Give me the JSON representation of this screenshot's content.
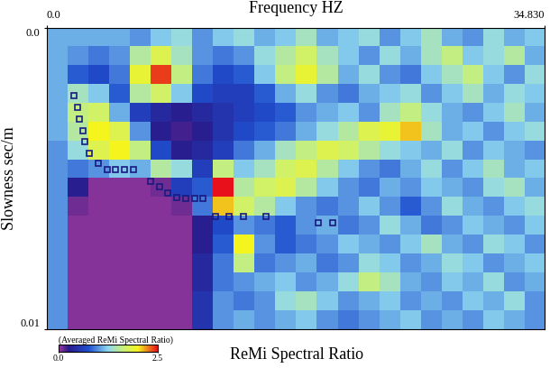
{
  "chart_data": {
    "type": "heatmap",
    "x_label": "Frequency HZ",
    "y_label": "Slowness sec/m",
    "caption": "ReMi Spectral Ratio",
    "xlim": [
      0,
      34.83
    ],
    "xticks": [
      {
        "value": 0,
        "label": "0.0"
      },
      {
        "value": 34.83,
        "label": "34.830"
      }
    ],
    "ylim": [
      0.01,
      0.0
    ],
    "yticks": [
      {
        "value": 0,
        "label": "0.0"
      },
      {
        "value": 0.01,
        "label": "0.01"
      }
    ],
    "cells": [
      [
        1.1,
        1.1,
        1.1,
        1.1,
        1.0,
        1.2,
        1.3,
        1.0,
        1.2,
        1.3,
        1.1,
        1.2,
        1.4,
        1.1,
        1.2,
        1.3,
        1.0,
        1.2,
        1.4,
        1.1,
        1.0,
        1.3,
        1.1,
        1.2
      ],
      [
        1.1,
        1.0,
        0.9,
        1.0,
        1.5,
        1.8,
        1.4,
        1.0,
        0.9,
        1.0,
        1.3,
        1.5,
        1.7,
        1.4,
        1.2,
        1.0,
        1.3,
        1.1,
        1.4,
        1.6,
        1.2,
        1.3,
        1.5,
        1.1
      ],
      [
        1.1,
        0.8,
        0.7,
        0.9,
        1.9,
        2.4,
        1.6,
        0.9,
        0.7,
        0.8,
        1.2,
        1.6,
        1.9,
        1.5,
        1.1,
        1.3,
        1.0,
        0.9,
        1.2,
        1.4,
        1.6,
        1.2,
        1.0,
        1.3
      ],
      [
        1.1,
        1.4,
        1.2,
        0.8,
        1.5,
        1.7,
        1.2,
        0.7,
        0.6,
        0.6,
        0.8,
        1.1,
        1.3,
        1.0,
        0.9,
        1.1,
        1.2,
        1.3,
        1.0,
        1.2,
        1.4,
        1.1,
        1.3,
        1.2
      ],
      [
        1.1,
        1.6,
        1.7,
        1.1,
        0.6,
        0.4,
        0.3,
        0.4,
        0.5,
        0.6,
        0.7,
        0.8,
        1.0,
        1.1,
        1.2,
        1.0,
        1.4,
        1.6,
        1.3,
        1.1,
        1.0,
        1.2,
        1.4,
        1.1
      ],
      [
        1.1,
        1.5,
        2.0,
        1.8,
        1.0,
        0.3,
        0.2,
        0.3,
        0.5,
        0.7,
        0.8,
        0.9,
        1.1,
        1.3,
        1.5,
        1.8,
        1.9,
        2.1,
        1.4,
        1.1,
        1.2,
        1.0,
        1.2,
        1.3
      ],
      [
        1.0,
        1.3,
        1.8,
        2.0,
        1.6,
        0.7,
        0.3,
        0.4,
        0.6,
        0.9,
        1.1,
        1.4,
        1.6,
        1.8,
        1.7,
        1.5,
        1.3,
        1.2,
        1.1,
        1.3,
        1.0,
        1.2,
        1.1,
        1.0
      ],
      [
        1.0,
        0.9,
        1.0,
        1.2,
        1.1,
        1.5,
        1.3,
        0.6,
        1.6,
        1.2,
        1.4,
        1.7,
        1.8,
        1.5,
        1.2,
        1.0,
        0.9,
        1.1,
        1.3,
        1.0,
        1.2,
        1.4,
        1.1,
        1.2
      ],
      [
        1.0,
        0.3,
        0.05,
        0.05,
        0.05,
        0.1,
        0.6,
        0.8,
        2.5,
        1.5,
        1.7,
        1.8,
        1.5,
        1.2,
        1.0,
        0.9,
        1.1,
        1.0,
        1.2,
        1.1,
        1.0,
        1.3,
        1.4,
        1.1
      ],
      [
        1.0,
        0.1,
        0.05,
        0.05,
        0.05,
        0.05,
        0.1,
        0.9,
        2.1,
        1.7,
        1.5,
        1.2,
        1.0,
        0.9,
        1.0,
        1.2,
        1.0,
        0.8,
        1.0,
        1.3,
        1.1,
        1.0,
        1.2,
        1.3
      ],
      [
        1.0,
        0.05,
        0.05,
        0.05,
        0.05,
        0.05,
        0.05,
        0.3,
        0.7,
        1.0,
        0.9,
        0.8,
        1.0,
        1.1,
        0.9,
        1.0,
        1.3,
        1.1,
        0.9,
        1.0,
        1.2,
        1.1,
        1.0,
        1.2
      ],
      [
        1.0,
        0.05,
        0.05,
        0.05,
        0.05,
        0.05,
        0.05,
        0.3,
        0.8,
        2.0,
        1.0,
        0.8,
        0.9,
        1.0,
        1.2,
        1.1,
        1.0,
        1.2,
        1.4,
        1.1,
        1.0,
        1.3,
        1.2,
        1.0
      ],
      [
        1.0,
        0.05,
        0.05,
        0.05,
        0.05,
        0.05,
        0.05,
        0.4,
        0.9,
        1.6,
        0.9,
        1.0,
        1.1,
        0.9,
        1.0,
        1.3,
        1.2,
        1.0,
        1.1,
        1.3,
        1.2,
        1.0,
        1.1,
        1.2
      ],
      [
        1.0,
        0.05,
        0.05,
        0.05,
        0.05,
        0.05,
        0.05,
        0.4,
        0.9,
        1.0,
        1.1,
        1.2,
        1.0,
        1.1,
        1.3,
        1.6,
        1.4,
        1.1,
        1.0,
        1.2,
        1.1,
        1.3,
        1.0,
        1.1
      ],
      [
        1.0,
        0.05,
        0.05,
        0.05,
        0.05,
        0.05,
        0.05,
        0.5,
        1.0,
        0.9,
        1.0,
        1.3,
        1.4,
        1.2,
        1.0,
        1.1,
        1.2,
        1.0,
        1.1,
        1.0,
        1.2,
        1.1,
        1.3,
        1.0
      ],
      [
        1.0,
        0.05,
        0.05,
        0.05,
        0.05,
        0.05,
        0.05,
        0.5,
        1.0,
        1.1,
        1.0,
        1.1,
        1.2,
        1.0,
        0.9,
        1.0,
        1.1,
        1.2,
        1.0,
        1.1,
        1.0,
        1.2,
        1.1,
        1.0
      ]
    ],
    "colorbar": {
      "title": "(Averaged ReMi Spectral Ratio)",
      "range": [
        0,
        2.5
      ],
      "ticks": [
        {
          "value": 0,
          "label": "0.0"
        },
        {
          "value": 2.5,
          "label": "2.5"
        }
      ]
    },
    "points": {
      "marker": "square",
      "color": "#1a1a80",
      "x": [
        1.89,
        2.14,
        2.26,
        2.51,
        2.63,
        2.99,
        3.61,
        4.22,
        4.83,
        5.44,
        6.05,
        7.27,
        7.88,
        8.49,
        9.1,
        9.72,
        10.33,
        10.94,
        11.79,
        12.77,
        13.75,
        15.34,
        19.0,
        19.98
      ],
      "y": [
        0.00226,
        0.00264,
        0.00302,
        0.00341,
        0.00379,
        0.00417,
        0.0045,
        0.00471,
        0.00471,
        0.00471,
        0.00471,
        0.0051,
        0.00526,
        0.00548,
        0.00564,
        0.00567,
        0.00567,
        0.00567,
        0.00627,
        0.00627,
        0.00627,
        0.00627,
        0.00646,
        0.00646
      ]
    }
  }
}
